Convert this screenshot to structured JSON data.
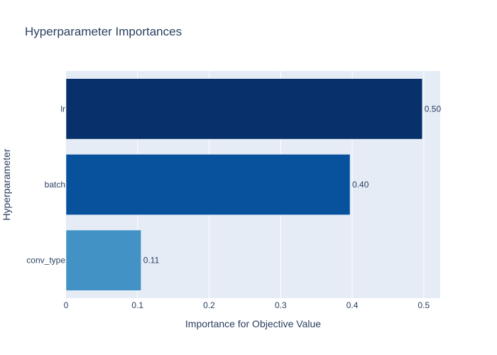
{
  "chart_data": {
    "type": "bar",
    "orientation": "horizontal",
    "title": "Hyperparameter Importances",
    "xlabel": "Importance for Objective Value",
    "ylabel": "Hyperparameter",
    "categories": [
      "lr",
      "batch",
      "conv_type"
    ],
    "values": [
      0.498,
      0.397,
      0.105
    ],
    "value_labels": [
      "0.50",
      "0.40",
      "0.11"
    ],
    "bar_colors": [
      "#08306b",
      "#08519c",
      "#4292c6"
    ],
    "xlim": [
      0,
      0.523
    ],
    "xticks": [
      0,
      0.1,
      0.2,
      0.3,
      0.4,
      0.5
    ],
    "xtick_labels": [
      "0",
      "0.1",
      "0.2",
      "0.3",
      "0.4",
      "0.5"
    ],
    "grid": true,
    "plot_background": "#e5ecf6",
    "text_color": "#2a3f5f"
  }
}
